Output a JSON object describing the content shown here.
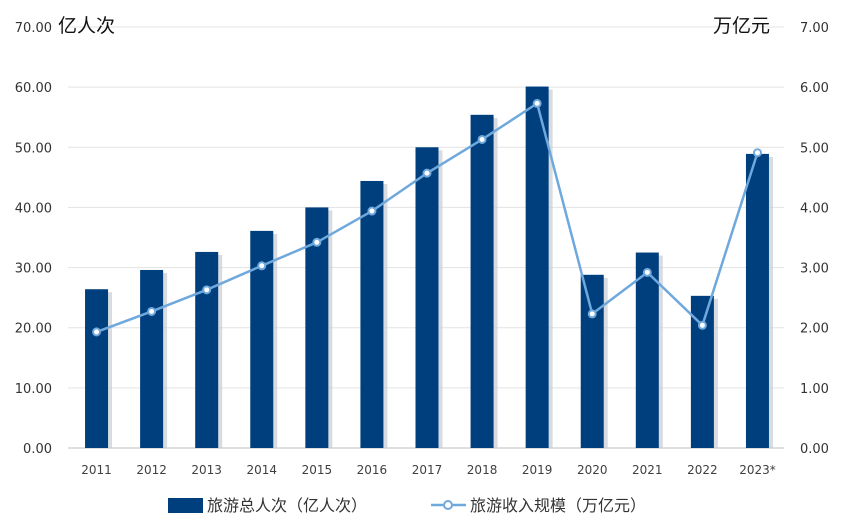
{
  "chart_data": {
    "type": "bar",
    "title": "",
    "categories": [
      "2011",
      "2012",
      "2013",
      "2014",
      "2015",
      "2016",
      "2017",
      "2018",
      "2019",
      "2020",
      "2021",
      "2022",
      "2023*"
    ],
    "series": [
      {
        "name": "旅游总人次（亿人次）",
        "kind": "bar",
        "axis": "left",
        "color": "#003f7d",
        "values": [
          26.4,
          29.6,
          32.6,
          36.1,
          40.0,
          44.4,
          50.0,
          55.4,
          60.1,
          28.8,
          32.5,
          25.3,
          48.9
        ]
      },
      {
        "name": "旅游收入规模（万亿元）",
        "kind": "line",
        "axis": "right",
        "color": "#6fa8dc",
        "values": [
          1.93,
          2.27,
          2.63,
          3.03,
          3.42,
          3.94,
          4.57,
          5.13,
          5.73,
          2.23,
          2.92,
          2.04,
          4.91
        ]
      }
    ],
    "y_left": {
      "unit_label": "亿人次",
      "ylim": [
        0,
        70
      ],
      "ticks": [
        "0.00",
        "10.00",
        "20.00",
        "30.00",
        "40.00",
        "50.00",
        "60.00",
        "70.00"
      ]
    },
    "y_right": {
      "unit_label": "万亿元",
      "ylim": [
        0,
        7
      ],
      "ticks": [
        "0.00",
        "1.00",
        "2.00",
        "3.00",
        "4.00",
        "5.00",
        "6.00",
        "7.00"
      ]
    },
    "grid": true,
    "legend_position": "bottom"
  }
}
